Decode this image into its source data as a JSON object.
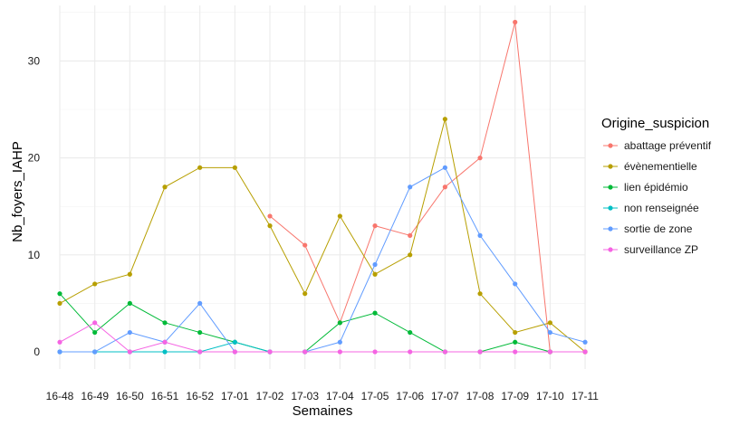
{
  "chart_data": {
    "type": "line",
    "xlabel": "Semaines",
    "ylabel": "Nb_foyers_IAHP",
    "ylim": [
      0,
      35
    ],
    "yticks": [
      0,
      10,
      20,
      30
    ],
    "grid": true,
    "legend": {
      "title": "Origine_suspicion",
      "position": "right"
    },
    "categories": [
      "16-48",
      "16-49",
      "16-50",
      "16-51",
      "16-52",
      "17-01",
      "17-02",
      "17-03",
      "17-04",
      "17-05",
      "17-06",
      "17-07",
      "17-08",
      "17-09",
      "17-10",
      "17-11"
    ],
    "series": [
      {
        "name": "abattage préventif",
        "color": "#F8766D",
        "values": [
          null,
          null,
          null,
          null,
          null,
          null,
          14,
          11,
          3,
          13,
          12,
          17,
          20,
          34,
          0,
          0
        ]
      },
      {
        "name": "évènementielle",
        "color": "#B79F00",
        "values": [
          5,
          7,
          8,
          17,
          19,
          19,
          13,
          6,
          14,
          8,
          10,
          24,
          6,
          2,
          3,
          0
        ]
      },
      {
        "name": "lien épidémio",
        "color": "#00BA38",
        "values": [
          6,
          2,
          5,
          3,
          2,
          1,
          0,
          0,
          3,
          4,
          2,
          0,
          0,
          1,
          0,
          null
        ]
      },
      {
        "name": "non renseignée",
        "color": "#00BFC4",
        "values": [
          0,
          0,
          0,
          0,
          0,
          1,
          0,
          null,
          null,
          null,
          null,
          null,
          null,
          null,
          null,
          null
        ]
      },
      {
        "name": "sortie de zone",
        "color": "#619CFF",
        "values": [
          0,
          0,
          2,
          1,
          5,
          0,
          0,
          0,
          1,
          9,
          17,
          19,
          12,
          7,
          2,
          1
        ]
      },
      {
        "name": "surveillance ZP",
        "color": "#F564E3",
        "values": [
          1,
          3,
          0,
          1,
          0,
          0,
          0,
          0,
          0,
          0,
          0,
          0,
          0,
          0,
          0,
          0
        ]
      }
    ]
  }
}
